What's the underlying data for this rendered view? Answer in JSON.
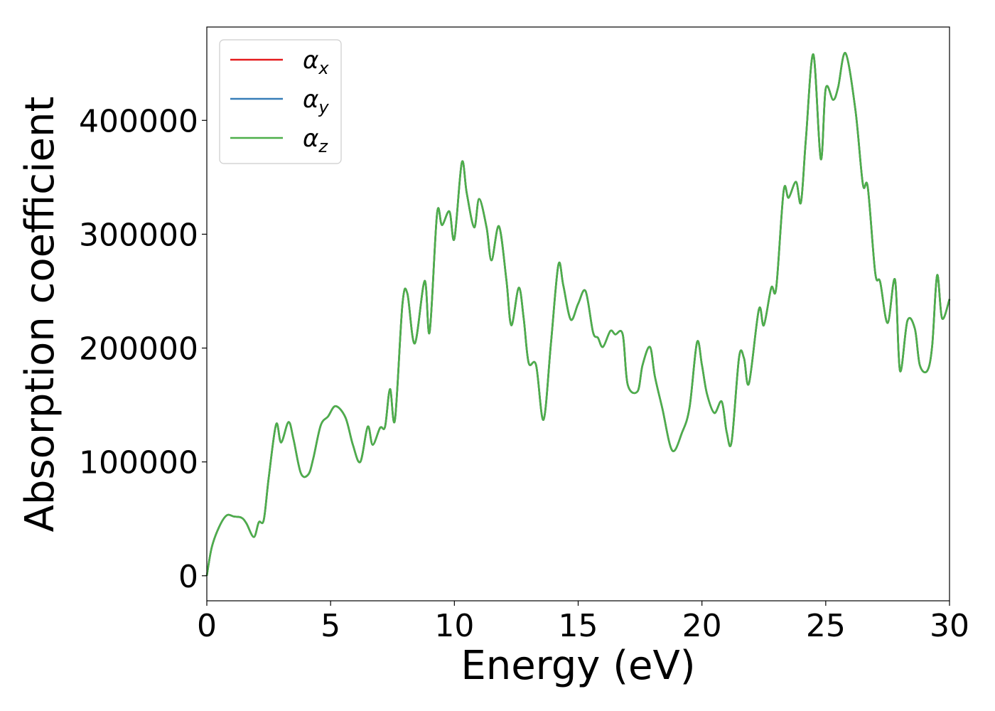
{
  "chart_data": {
    "type": "line",
    "title": "",
    "xlabel": "Energy (eV)",
    "ylabel": "Absorption coefficient",
    "xlim": [
      0,
      30
    ],
    "ylim": [
      -22000,
      482000
    ],
    "xticks": [
      0,
      5,
      10,
      15,
      20,
      25,
      30
    ],
    "yticks": [
      0,
      100000,
      200000,
      300000,
      400000
    ],
    "grid": false,
    "legend_position": "top-left",
    "series": [
      {
        "name": "αx",
        "symbol": "α",
        "subscript": "x",
        "color": "#e41a1c",
        "x": [
          0,
          0.2,
          0.5,
          0.8,
          1.1,
          1.4,
          1.6,
          1.9,
          2.1,
          2.3,
          2.5,
          2.8,
          3.0,
          3.3,
          3.5,
          3.8,
          4.1,
          4.3,
          4.6,
          4.9,
          5.2,
          5.6,
          5.9,
          6.2,
          6.5,
          6.7,
          7.0,
          7.2,
          7.4,
          7.6,
          7.9,
          8.1,
          8.4,
          8.8,
          9.0,
          9.3,
          9.5,
          9.8,
          10.0,
          10.3,
          10.5,
          10.8,
          11.0,
          11.3,
          11.5,
          11.8,
          12.1,
          12.3,
          12.6,
          12.8,
          13.0,
          13.3,
          13.6,
          13.9,
          14.2,
          14.4,
          14.7,
          15.0,
          15.3,
          15.6,
          15.8,
          16.0,
          16.3,
          16.5,
          16.8,
          17.0,
          17.4,
          17.6,
          17.9,
          18.1,
          18.4,
          18.8,
          19.2,
          19.5,
          19.8,
          20.0,
          20.2,
          20.5,
          20.8,
          21.0,
          21.2,
          21.5,
          21.7,
          21.9,
          22.3,
          22.5,
          22.8,
          23.0,
          23.3,
          23.5,
          23.8,
          24.0,
          24.2,
          24.5,
          24.8,
          25.0,
          25.3,
          25.5,
          25.8,
          26.2,
          26.5,
          26.7,
          27.0,
          27.2,
          27.5,
          27.8,
          28.0,
          28.3,
          28.6,
          28.8,
          29.1,
          29.3,
          29.5,
          29.7,
          30.0
        ],
        "y": [
          0,
          25000,
          43000,
          53000,
          52000,
          51000,
          46000,
          34000,
          47000,
          49000,
          86000,
          133000,
          117000,
          135000,
          120000,
          90000,
          89000,
          103000,
          132000,
          140000,
          149000,
          139000,
          115000,
          100000,
          131000,
          115000,
          130000,
          131000,
          164000,
          137000,
          238000,
          248000,
          204000,
          259000,
          214000,
          318000,
          308000,
          320000,
          296000,
          363000,
          336000,
          306000,
          331000,
          306000,
          277000,
          307000,
          260000,
          220000,
          253000,
          226000,
          187000,
          185000,
          137000,
          204000,
          273000,
          255000,
          225000,
          239000,
          250000,
          214000,
          209000,
          201000,
          215000,
          212000,
          212000,
          168000,
          162000,
          185000,
          201000,
          175000,
          147000,
          110000,
          126000,
          148000,
          205000,
          185000,
          160000,
          143000,
          153000,
          126000,
          118000,
          192000,
          191000,
          169000,
          234000,
          220000,
          253000,
          253000,
          338000,
          332000,
          346000,
          328000,
          384000,
          458000,
          366000,
          428000,
          418000,
          429000,
          459000,
          409000,
          344000,
          341000,
          266000,
          258000,
          222000,
          260000,
          180000,
          224000,
          217000,
          185000,
          180000,
          202000,
          264000,
          226000,
          243000
        ]
      },
      {
        "name": "αy",
        "symbol": "α",
        "subscript": "y",
        "color": "#377eb8",
        "x": [
          0,
          0.2,
          0.5,
          0.8,
          1.1,
          1.4,
          1.6,
          1.9,
          2.1,
          2.3,
          2.5,
          2.8,
          3.0,
          3.3,
          3.5,
          3.8,
          4.1,
          4.3,
          4.6,
          4.9,
          5.2,
          5.6,
          5.9,
          6.2,
          6.5,
          6.7,
          7.0,
          7.2,
          7.4,
          7.6,
          7.9,
          8.1,
          8.4,
          8.8,
          9.0,
          9.3,
          9.5,
          9.8,
          10.0,
          10.3,
          10.5,
          10.8,
          11.0,
          11.3,
          11.5,
          11.8,
          12.1,
          12.3,
          12.6,
          12.8,
          13.0,
          13.3,
          13.6,
          13.9,
          14.2,
          14.4,
          14.7,
          15.0,
          15.3,
          15.6,
          15.8,
          16.0,
          16.3,
          16.5,
          16.8,
          17.0,
          17.4,
          17.6,
          17.9,
          18.1,
          18.4,
          18.8,
          19.2,
          19.5,
          19.8,
          20.0,
          20.2,
          20.5,
          20.8,
          21.0,
          21.2,
          21.5,
          21.7,
          21.9,
          22.3,
          22.5,
          22.8,
          23.0,
          23.3,
          23.5,
          23.8,
          24.0,
          24.2,
          24.5,
          24.8,
          25.0,
          25.3,
          25.5,
          25.8,
          26.2,
          26.5,
          26.7,
          27.0,
          27.2,
          27.5,
          27.8,
          28.0,
          28.3,
          28.6,
          28.8,
          29.1,
          29.3,
          29.5,
          29.7,
          30.0
        ],
        "y": [
          0,
          25000,
          43000,
          53000,
          52000,
          51000,
          46000,
          34000,
          47000,
          49000,
          86000,
          133000,
          117000,
          135000,
          120000,
          90000,
          89000,
          103000,
          132000,
          140000,
          149000,
          139000,
          115000,
          100000,
          131000,
          115000,
          130000,
          131000,
          164000,
          137000,
          238000,
          248000,
          204000,
          259000,
          214000,
          318000,
          308000,
          320000,
          296000,
          363000,
          336000,
          306000,
          331000,
          306000,
          277000,
          307000,
          260000,
          220000,
          253000,
          226000,
          187000,
          185000,
          137000,
          204000,
          273000,
          255000,
          225000,
          239000,
          250000,
          214000,
          209000,
          201000,
          215000,
          212000,
          212000,
          168000,
          162000,
          185000,
          201000,
          175000,
          147000,
          110000,
          126000,
          148000,
          205000,
          185000,
          160000,
          143000,
          153000,
          126000,
          118000,
          192000,
          191000,
          169000,
          234000,
          220000,
          253000,
          253000,
          338000,
          332000,
          346000,
          328000,
          384000,
          458000,
          366000,
          428000,
          418000,
          429000,
          459000,
          409000,
          344000,
          341000,
          266000,
          258000,
          222000,
          260000,
          180000,
          224000,
          217000,
          185000,
          180000,
          202000,
          264000,
          226000,
          243000
        ]
      },
      {
        "name": "αz",
        "symbol": "α",
        "subscript": "z",
        "color": "#4daf4a",
        "x": [
          0,
          0.2,
          0.5,
          0.8,
          1.1,
          1.4,
          1.6,
          1.9,
          2.1,
          2.3,
          2.5,
          2.8,
          3.0,
          3.3,
          3.5,
          3.8,
          4.1,
          4.3,
          4.6,
          4.9,
          5.2,
          5.6,
          5.9,
          6.2,
          6.5,
          6.7,
          7.0,
          7.2,
          7.4,
          7.6,
          7.9,
          8.1,
          8.4,
          8.8,
          9.0,
          9.3,
          9.5,
          9.8,
          10.0,
          10.3,
          10.5,
          10.8,
          11.0,
          11.3,
          11.5,
          11.8,
          12.1,
          12.3,
          12.6,
          12.8,
          13.0,
          13.3,
          13.6,
          13.9,
          14.2,
          14.4,
          14.7,
          15.0,
          15.3,
          15.6,
          15.8,
          16.0,
          16.3,
          16.5,
          16.8,
          17.0,
          17.4,
          17.6,
          17.9,
          18.1,
          18.4,
          18.8,
          19.2,
          19.5,
          19.8,
          20.0,
          20.2,
          20.5,
          20.8,
          21.0,
          21.2,
          21.5,
          21.7,
          21.9,
          22.3,
          22.5,
          22.8,
          23.0,
          23.3,
          23.5,
          23.8,
          24.0,
          24.2,
          24.5,
          24.8,
          25.0,
          25.3,
          25.5,
          25.8,
          26.2,
          26.5,
          26.7,
          27.0,
          27.2,
          27.5,
          27.8,
          28.0,
          28.3,
          28.6,
          28.8,
          29.1,
          29.3,
          29.5,
          29.7,
          30.0
        ],
        "y": [
          0,
          25000,
          43000,
          53000,
          52000,
          51000,
          46000,
          34000,
          47000,
          49000,
          86000,
          133000,
          117000,
          135000,
          120000,
          90000,
          89000,
          103000,
          132000,
          140000,
          149000,
          139000,
          115000,
          100000,
          131000,
          115000,
          130000,
          131000,
          164000,
          137000,
          238000,
          248000,
          204000,
          259000,
          214000,
          318000,
          308000,
          320000,
          296000,
          363000,
          336000,
          306000,
          331000,
          306000,
          277000,
          307000,
          260000,
          220000,
          253000,
          226000,
          187000,
          185000,
          137000,
          204000,
          273000,
          255000,
          225000,
          239000,
          250000,
          214000,
          209000,
          201000,
          215000,
          212000,
          212000,
          168000,
          162000,
          185000,
          201000,
          175000,
          147000,
          110000,
          126000,
          148000,
          205000,
          185000,
          160000,
          143000,
          153000,
          126000,
          118000,
          192000,
          191000,
          169000,
          234000,
          220000,
          253000,
          253000,
          338000,
          332000,
          346000,
          328000,
          384000,
          458000,
          366000,
          428000,
          418000,
          429000,
          459000,
          409000,
          344000,
          341000,
          266000,
          258000,
          222000,
          260000,
          180000,
          224000,
          217000,
          185000,
          180000,
          202000,
          264000,
          226000,
          243000
        ]
      }
    ]
  }
}
